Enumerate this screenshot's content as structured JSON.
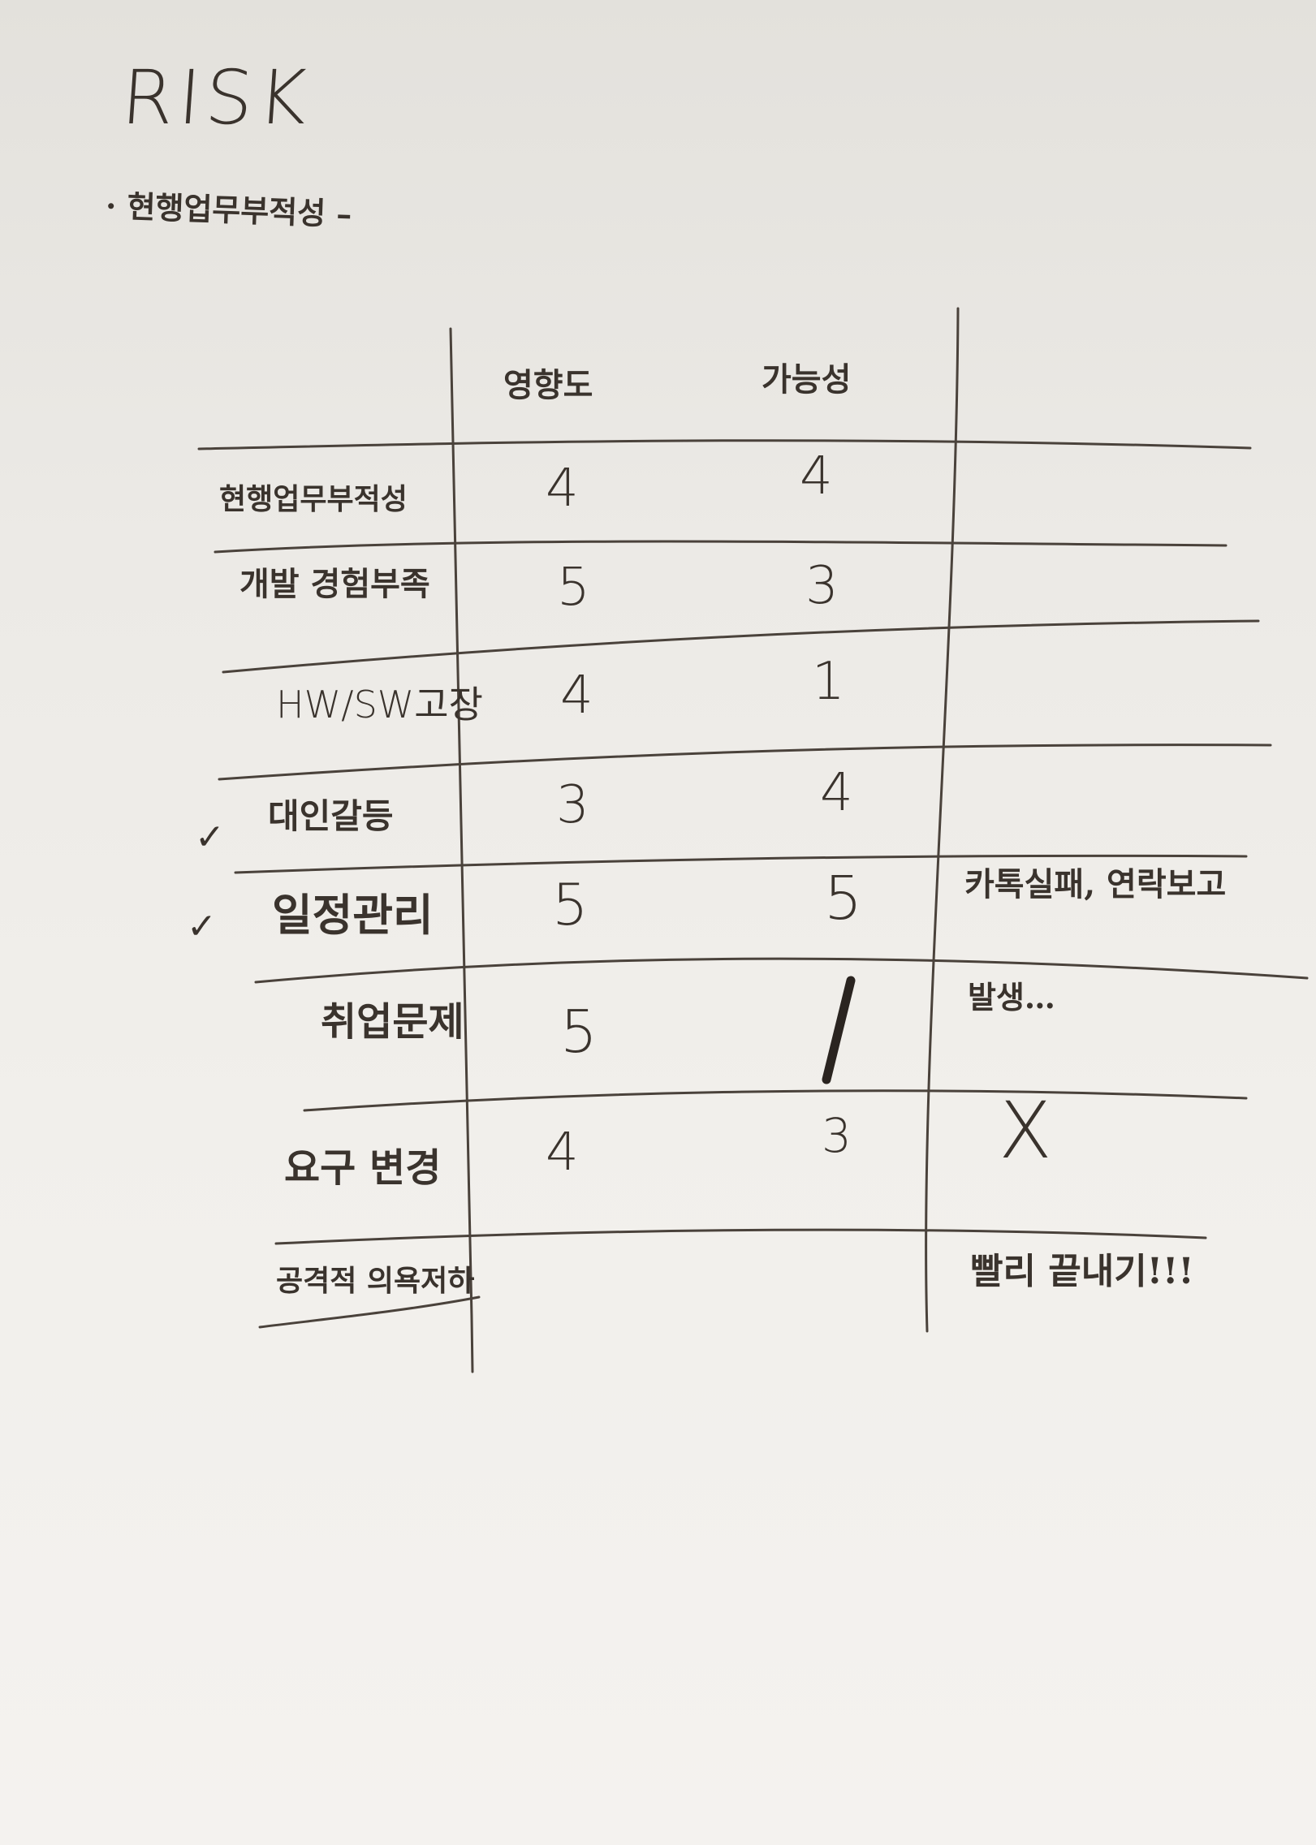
{
  "title": "RISK",
  "subtitle": "· 현행업무부적성 –",
  "table": {
    "headers": [
      "",
      "영향도",
      "가능성",
      ""
    ],
    "rows": [
      {
        "label": "현행업무부적성",
        "impact": "4",
        "probability": "4",
        "note": "",
        "checked": false
      },
      {
        "label": "개발 경험부족",
        "impact": "5",
        "probability": "3",
        "note": "",
        "checked": false
      },
      {
        "label": "HW/SW고장",
        "impact": "4",
        "probability": "1",
        "note": "",
        "checked": false
      },
      {
        "label": "대인갈등",
        "impact": "3",
        "probability": "4",
        "note": "",
        "checked": true
      },
      {
        "label": "일정관리",
        "impact": "5",
        "probability": "5",
        "note": "카톡실패, 연락보고",
        "checked": true
      },
      {
        "label": "취업문제",
        "impact": "5",
        "probability": "1",
        "note": "발생…",
        "checked": false
      },
      {
        "label": "요구 변경",
        "impact": "4",
        "probability": "3",
        "note": "X",
        "checked": false
      },
      {
        "label": "공격적 의욕저하",
        "impact": "",
        "probability": "",
        "note": "빨리 끝내기!!!",
        "checked": false
      }
    ]
  },
  "check_mark": "✓"
}
